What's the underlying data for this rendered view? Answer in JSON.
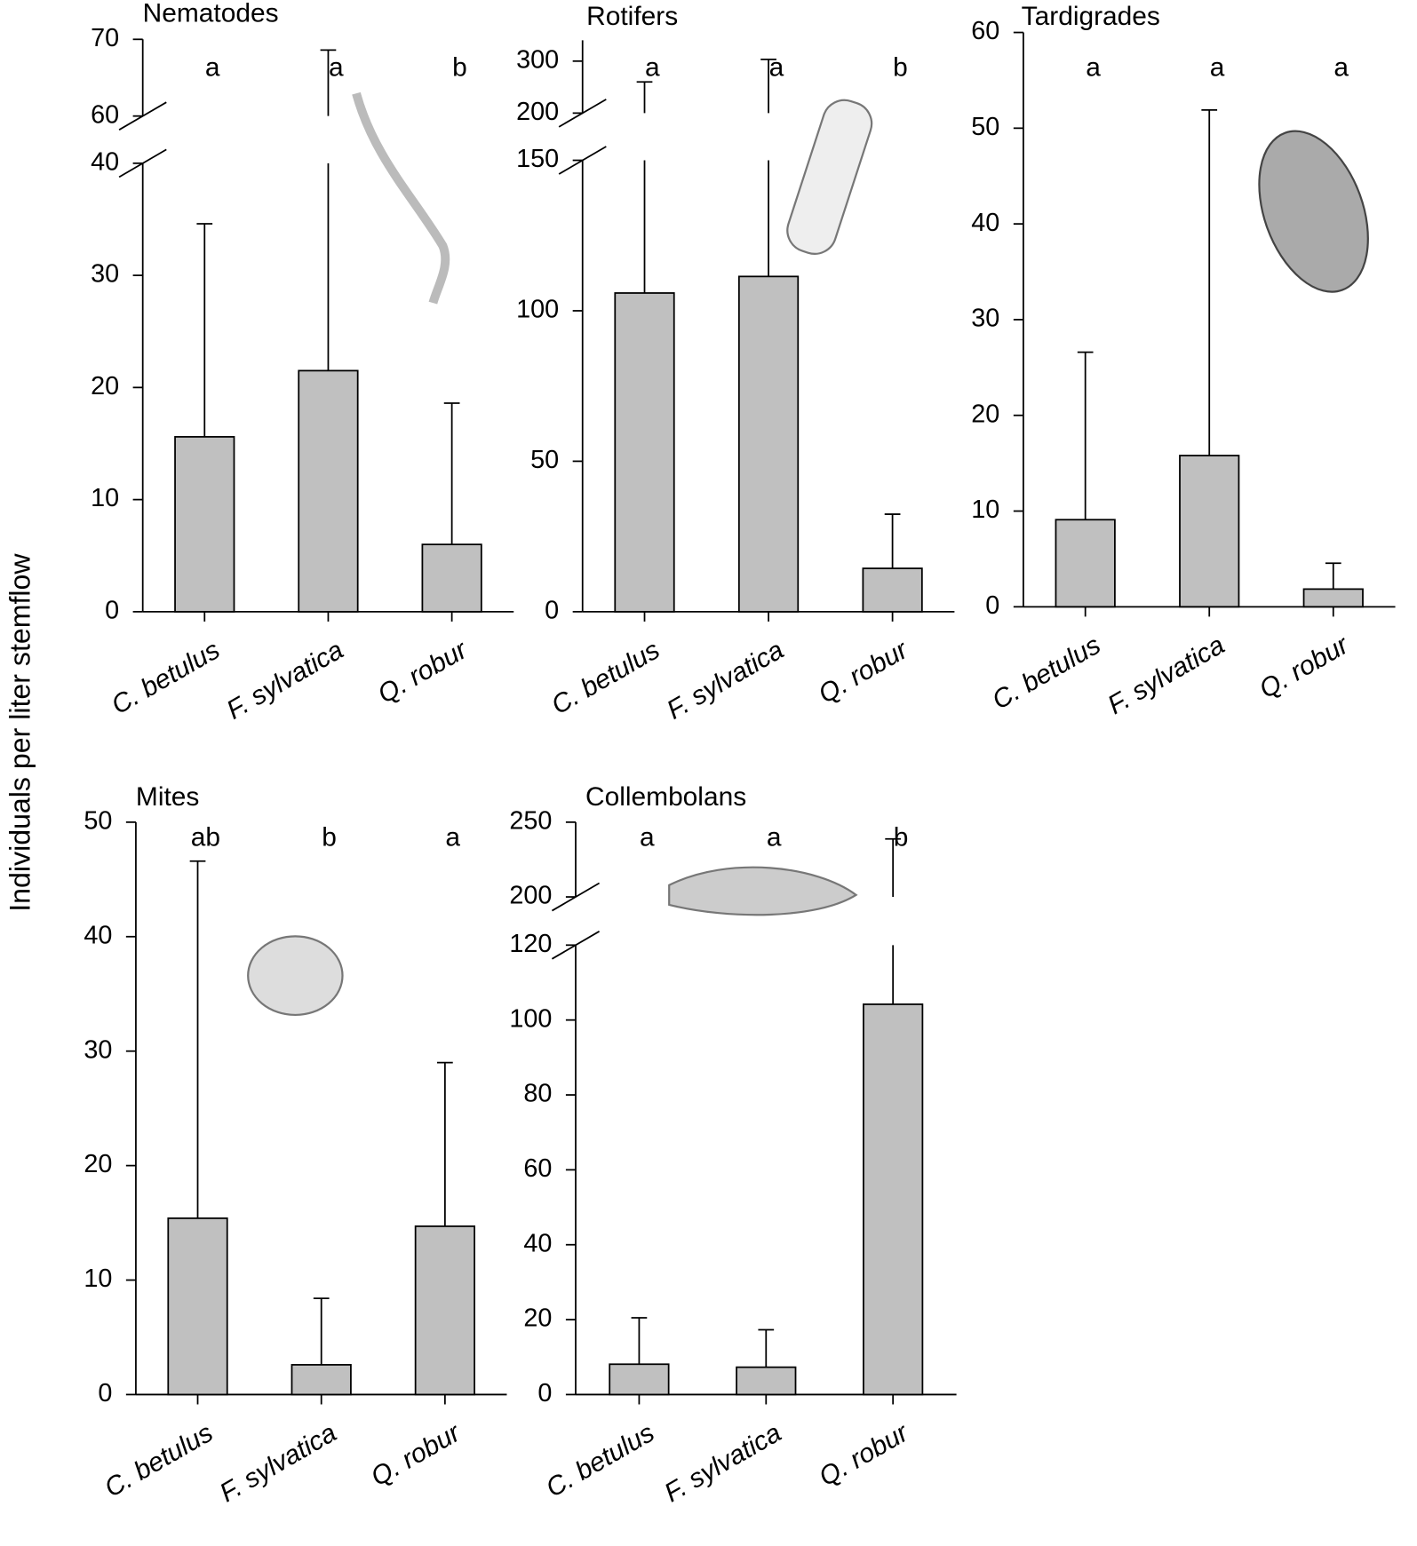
{
  "ylabel": "Individuals per liter stemflow",
  "chart_data": [
    {
      "type": "bar",
      "title": "Nematodes",
      "categories": [
        "C. betulus",
        "F. sylvatica",
        "Q. robur"
      ],
      "values": [
        15.6,
        21.5,
        6.0
      ],
      "errors": [
        19.0,
        47.1,
        12.6
      ],
      "letters": [
        "a",
        "a",
        "b"
      ],
      "color": "#c0c0c0",
      "ylim": [
        0,
        70
      ],
      "break": [
        40,
        60
      ],
      "yticks": [
        0,
        10,
        20,
        30,
        40,
        60,
        70
      ]
    },
    {
      "type": "bar",
      "title": "Rotifers",
      "categories": [
        "C. betulus",
        "F. sylvatica",
        "Q. robur"
      ],
      "values": [
        105.9,
        111.4,
        14.4
      ],
      "errors": [
        154,
        192,
        18
      ],
      "letters": [
        "a",
        "a",
        "b"
      ],
      "color": "#c0c0c0",
      "ylim": [
        0,
        340
      ],
      "break": [
        150,
        200
      ],
      "yticks": [
        0,
        50,
        100,
        150,
        200,
        300
      ]
    },
    {
      "type": "bar",
      "title": "Tardigrades",
      "categories": [
        "C. betulus",
        "F. sylvatica",
        "Q. robur"
      ],
      "values": [
        9.1,
        15.8,
        1.85
      ],
      "errors": [
        17.5,
        36.1,
        2.7
      ],
      "letters": [
        "a",
        "a",
        "a"
      ],
      "color": "#c0c0c0",
      "ylim": [
        0,
        60
      ],
      "yticks": [
        0,
        10,
        20,
        30,
        40,
        50,
        60
      ]
    },
    {
      "type": "bar",
      "title": "Mites",
      "categories": [
        "C. betulus",
        "F. sylvatica",
        "Q. robur"
      ],
      "values": [
        15.4,
        2.6,
        14.7
      ],
      "errors": [
        31.2,
        5.8,
        14.3
      ],
      "letters": [
        "ab",
        "b",
        "a"
      ],
      "color": "#c0c0c0",
      "ylim": [
        0,
        50
      ],
      "yticks": [
        0,
        10,
        20,
        30,
        40,
        50
      ]
    },
    {
      "type": "bar",
      "title": "Collembolans",
      "categories": [
        "C. betulus",
        "F. sylvatica",
        "Q. robur"
      ],
      "values": [
        8.1,
        7.3,
        104.2
      ],
      "errors": [
        12.4,
        10.0,
        134.6
      ],
      "letters": [
        "a",
        "a",
        "b"
      ],
      "color": "#c0c0c0",
      "ylim": [
        0,
        250
      ],
      "break": [
        120,
        200
      ],
      "yticks": [
        0,
        20,
        40,
        60,
        80,
        100,
        120,
        200,
        250
      ]
    }
  ]
}
